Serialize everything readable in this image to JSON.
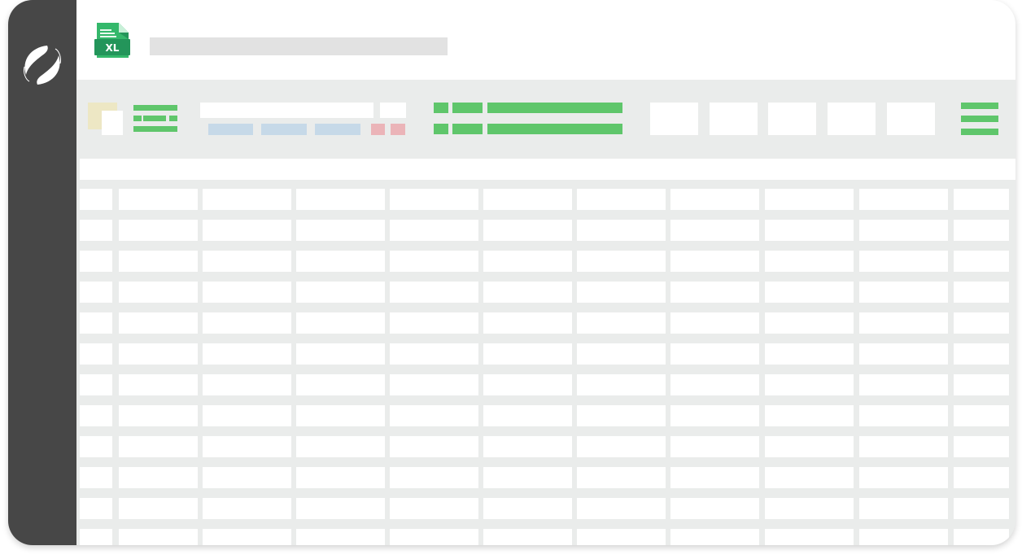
{
  "app": {
    "logo_icon": "leaf-swirl-logo-icon",
    "file_icon": "excel-file-icon",
    "file_icon_label": "XL",
    "title_placeholder_bar": ""
  },
  "colors": {
    "sidebar": "#474747",
    "accent_green": "#5fc66b",
    "file_icon_green": "#34b86b",
    "file_icon_dark_green": "#23955a",
    "toolbar_bg": "#eaeceb",
    "blue_chip": "#c6d9e8",
    "red_chip": "#ebb4b8",
    "paste_yellow": "#ede7c4"
  },
  "toolbar": {
    "icons": [
      "paste-icon",
      "align-icon",
      "font-name-field",
      "font-size-field",
      "format-chips",
      "number-format-icon",
      "style-buttons",
      "menu-icon"
    ]
  }
}
